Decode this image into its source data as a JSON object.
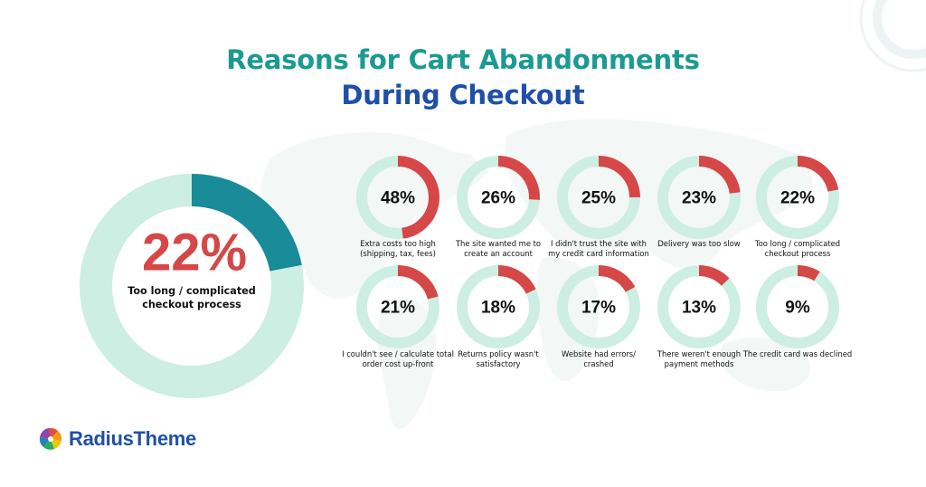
{
  "title": {
    "line1": "Reasons for Cart Abandonments",
    "line2": "During Checkout"
  },
  "colors": {
    "title_line1": "#1a9a93",
    "title_line2": "#1f4fa8",
    "track": "#cdeee3",
    "small_fill": "#d64747",
    "big_fill": "#198b99",
    "big_value_text": "#d64747",
    "value_text": "#111111",
    "background_decor": "#f1f6f5"
  },
  "featured": {
    "value": "22%",
    "caption_lines": [
      "Too long / complicated",
      "checkout process"
    ],
    "percent": 22
  },
  "chart_data": {
    "type": "pie",
    "title": "Reasons for Cart Abandonments During Checkout",
    "value_unit": "%",
    "categories": [
      "Extra costs too high (shipping, tax, fees)",
      "The site wanted me to create an account",
      "I didn't trust the site with my credit card information",
      "Delivery was too slow",
      "Too long / complicated checkout process",
      "I couldn't see / calculate total order cost up-front",
      "Returns policy wasn't satisfactory",
      "Website had errors/ crashed",
      "There weren't enough payment methods",
      "The credit card was declined"
    ],
    "values": [
      48,
      26,
      25,
      23,
      22,
      21,
      18,
      17,
      13,
      9
    ],
    "items": [
      {
        "label": "48%",
        "value": 48,
        "caption_lines": [
          "Extra costs too high",
          "(shipping, tax, fees)"
        ]
      },
      {
        "label": "26%",
        "value": 26,
        "caption_lines": [
          "The site wanted me to",
          "create an account"
        ]
      },
      {
        "label": "25%",
        "value": 25,
        "caption_lines": [
          "I didn't trust the site with",
          "my credit card information"
        ]
      },
      {
        "label": "23%",
        "value": 23,
        "caption_lines": [
          "Delivery was too slow"
        ]
      },
      {
        "label": "22%",
        "value": 22,
        "caption_lines": [
          "Too long / complicated",
          "checkout process"
        ]
      },
      {
        "label": "21%",
        "value": 21,
        "caption_lines": [
          "I couldn't see / calculate total",
          "order cost up-front"
        ]
      },
      {
        "label": "18%",
        "value": 18,
        "caption_lines": [
          "Returns policy wasn't",
          "satisfactory"
        ]
      },
      {
        "label": "17%",
        "value": 17,
        "caption_lines": [
          "Website had errors/",
          "crashed"
        ]
      },
      {
        "label": "13%",
        "value": 13,
        "caption_lines": [
          "There weren't enough",
          "payment methods"
        ]
      },
      {
        "label": "9%",
        "value": 9,
        "caption_lines": [
          "The credit card was declined"
        ]
      }
    ]
  },
  "logo": {
    "text": "RadiusTheme",
    "icon": "radius-pinwheel-icon"
  }
}
